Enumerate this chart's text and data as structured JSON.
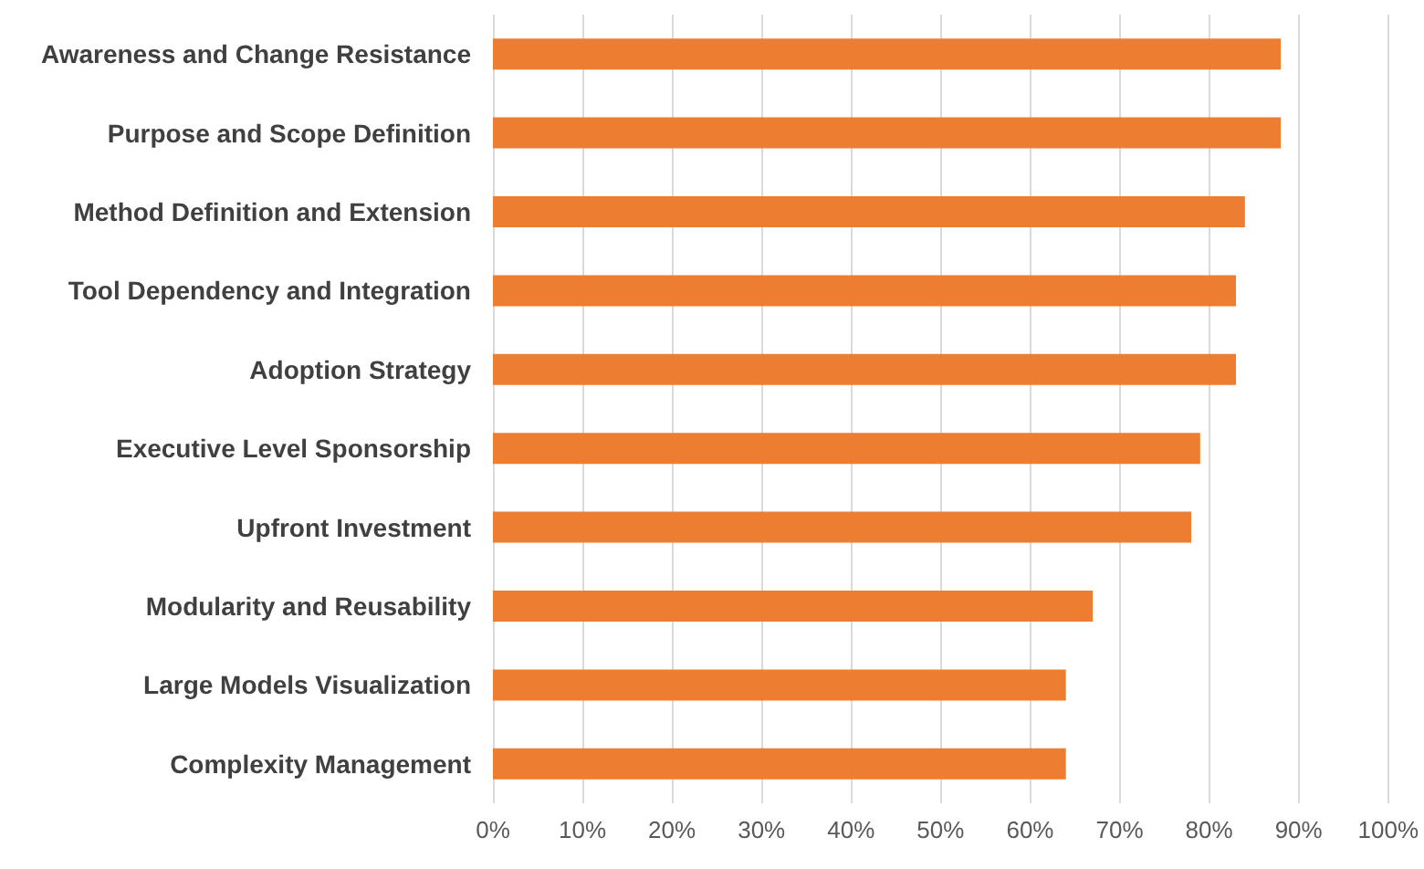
{
  "chart_data": {
    "type": "bar",
    "orientation": "horizontal",
    "categories": [
      "Awareness and Change Resistance",
      "Purpose and Scope Definition",
      "Method Definition and Extension",
      "Tool Dependency and Integration",
      "Adoption Strategy",
      "Executive Level Sponsorship",
      "Upfront Investment",
      "Modularity and Reusability",
      "Large Models Visualization",
      "Complexity Management"
    ],
    "values": [
      88,
      88,
      84,
      83,
      83,
      79,
      78,
      67,
      64,
      64
    ],
    "color": "#ed7d31",
    "xlim": [
      0,
      100
    ],
    "xticks": [
      {
        "value": 0,
        "label": "0%"
      },
      {
        "value": 10,
        "label": "10%"
      },
      {
        "value": 20,
        "label": "20%"
      },
      {
        "value": 30,
        "label": "30%"
      },
      {
        "value": 40,
        "label": "40%"
      },
      {
        "value": 50,
        "label": "50%"
      },
      {
        "value": 60,
        "label": "60%"
      },
      {
        "value": 70,
        "label": "70%"
      },
      {
        "value": 80,
        "label": "80%"
      },
      {
        "value": 90,
        "label": "90%"
      },
      {
        "value": 100,
        "label": "100%"
      }
    ],
    "grid": "x"
  }
}
